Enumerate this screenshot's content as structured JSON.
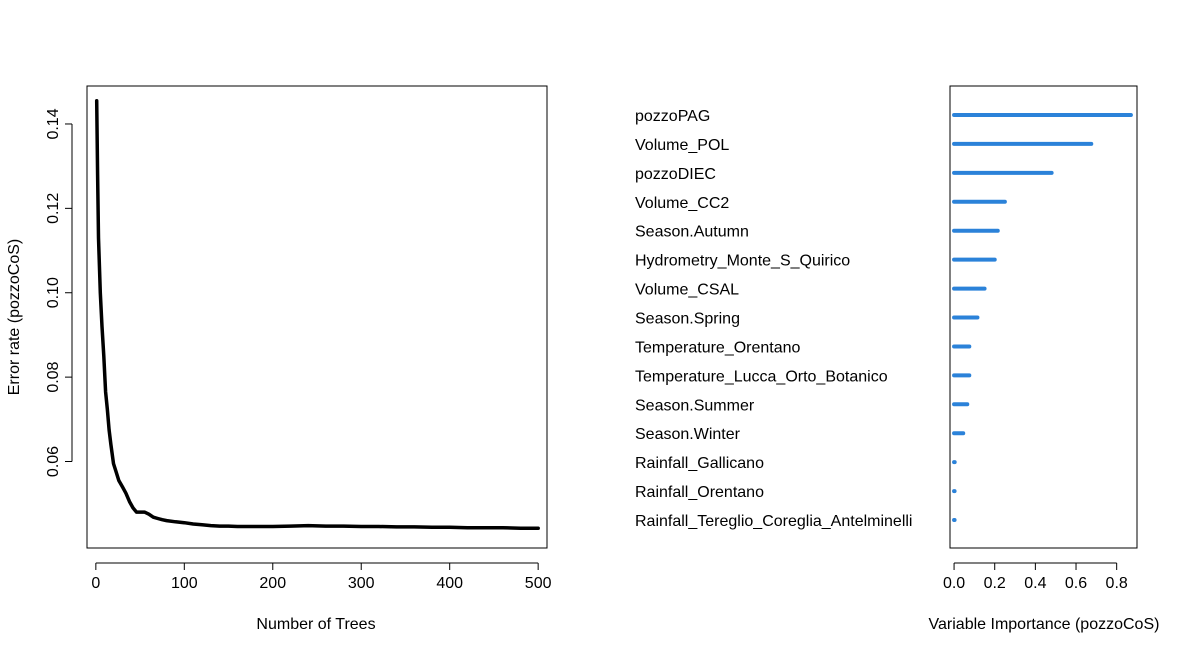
{
  "chart_data": [
    {
      "type": "line",
      "title": "",
      "xlabel": "Number of Trees",
      "ylabel": "Error rate (pozzoCoS)",
      "xlim": [
        -10,
        510
      ],
      "ylim": [
        0.0395,
        0.149
      ],
      "x_ticks": [
        0,
        100,
        200,
        300,
        400,
        500
      ],
      "x_tick_labels": [
        "0",
        "100",
        "200",
        "300",
        "400",
        "500"
      ],
      "y_ticks": [
        0.06,
        0.08,
        0.1,
        0.12,
        0.14
      ],
      "y_tick_labels": [
        "0.06",
        "0.08",
        "0.10",
        "0.12",
        "0.14"
      ],
      "grid": false,
      "color": "#000000",
      "x": [
        1,
        2,
        3,
        5,
        7,
        9,
        11,
        13,
        15,
        17,
        20,
        23,
        26,
        30,
        34,
        38,
        42,
        46,
        50,
        55,
        60,
        65,
        70,
        75,
        80,
        90,
        100,
        110,
        120,
        130,
        140,
        150,
        160,
        170,
        180,
        190,
        200,
        220,
        240,
        260,
        280,
        300,
        320,
        340,
        360,
        380,
        400,
        420,
        440,
        460,
        480,
        500
      ],
      "y": [
        0.1455,
        0.128,
        0.113,
        0.1,
        0.092,
        0.085,
        0.0765,
        0.0725,
        0.0675,
        0.064,
        0.0595,
        0.0575,
        0.0555,
        0.054,
        0.0525,
        0.0505,
        0.049,
        0.048,
        0.048,
        0.048,
        0.0475,
        0.0468,
        0.0465,
        0.0462,
        0.046,
        0.0457,
        0.0455,
        0.0452,
        0.045,
        0.0448,
        0.0447,
        0.0447,
        0.0446,
        0.0446,
        0.0446,
        0.0446,
        0.0446,
        0.0447,
        0.0448,
        0.0447,
        0.0447,
        0.0446,
        0.0446,
        0.0445,
        0.0445,
        0.0444,
        0.0444,
        0.0443,
        0.0443,
        0.0443,
        0.0442,
        0.0442
      ]
    },
    {
      "type": "bar",
      "orientation": "horizontal",
      "title": "",
      "xlabel": "Variable Importance (pozzoCoS)",
      "xlim": [
        -0.02,
        0.9
      ],
      "x_ticks": [
        0.0,
        0.2,
        0.4,
        0.6,
        0.8
      ],
      "x_tick_labels": [
        "0.0",
        "0.2",
        "0.4",
        "0.6",
        "0.8"
      ],
      "grid": false,
      "color": "#2b82d9",
      "categories": [
        "pozzoPAG",
        "Volume_POL",
        "pozzoDIEC",
        "Volume_CC2",
        "Season.Autumn",
        "Hydrometry_Monte_S_Quirico",
        "Volume_CSAL",
        "Season.Spring",
        "Temperature_Orentano",
        "Temperature_Lucca_Orto_Botanico",
        "Season.Summer",
        "Season.Winter",
        "Rainfall_Gallicano",
        "Rainfall_Orentano",
        "Rainfall_Tereglio_Coreglia_Antelminelli"
      ],
      "values": [
        0.87,
        0.675,
        0.48,
        0.25,
        0.215,
        0.2,
        0.15,
        0.115,
        0.075,
        0.075,
        0.065,
        0.045,
        0.003,
        0.002,
        0.001
      ]
    }
  ]
}
